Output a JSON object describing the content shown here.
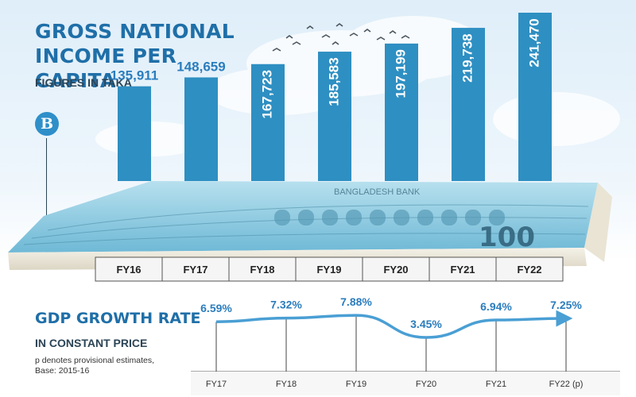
{
  "headline": "GROSS NATIONAL INCOME PER CAPITA",
  "subhead": "FIGURES IN TAKA",
  "logo_letter": "B",
  "banknote": {
    "denomination": "100",
    "bank_text": "BANGLADESH BANK"
  },
  "gdp": {
    "title": "GDP GROWTH RATE",
    "subtitle": "IN CONSTANT PRICE",
    "note": "p denotes provisional estimates, Base: 2015-16"
  },
  "colors": {
    "bar": "#2e8fc2",
    "title": "#1f6fa8",
    "line": "#4a9fd4",
    "label": "#2b7dbd",
    "banknote": "#7fc4dd"
  },
  "chart_data": [
    {
      "type": "bar",
      "title": "GROSS NATIONAL INCOME PER CAPITA",
      "subtitle": "FIGURES IN TAKA",
      "categories": [
        "FY16",
        "FY17",
        "FY18",
        "FY19",
        "FY20",
        "FY21",
        "FY22"
      ],
      "values": [
        135911,
        148659,
        167723,
        185583,
        197199,
        219738,
        241470
      ],
      "value_labels": [
        "135,911",
        "148,659",
        "167,723",
        "185,583",
        "197,199",
        "219,738",
        "241,470"
      ],
      "grid": false
    },
    {
      "type": "line",
      "title": "GDP GROWTH RATE",
      "subtitle": "IN CONSTANT PRICE",
      "categories": [
        "FY17",
        "FY18",
        "FY19",
        "FY20",
        "FY21",
        "FY22 (p)"
      ],
      "values": [
        6.59,
        7.32,
        7.88,
        3.45,
        6.94,
        7.25
      ],
      "value_labels": [
        "6.59%",
        "7.32%",
        "7.88%",
        "3.45%",
        "6.94%",
        "7.25%"
      ],
      "grid": false
    }
  ]
}
